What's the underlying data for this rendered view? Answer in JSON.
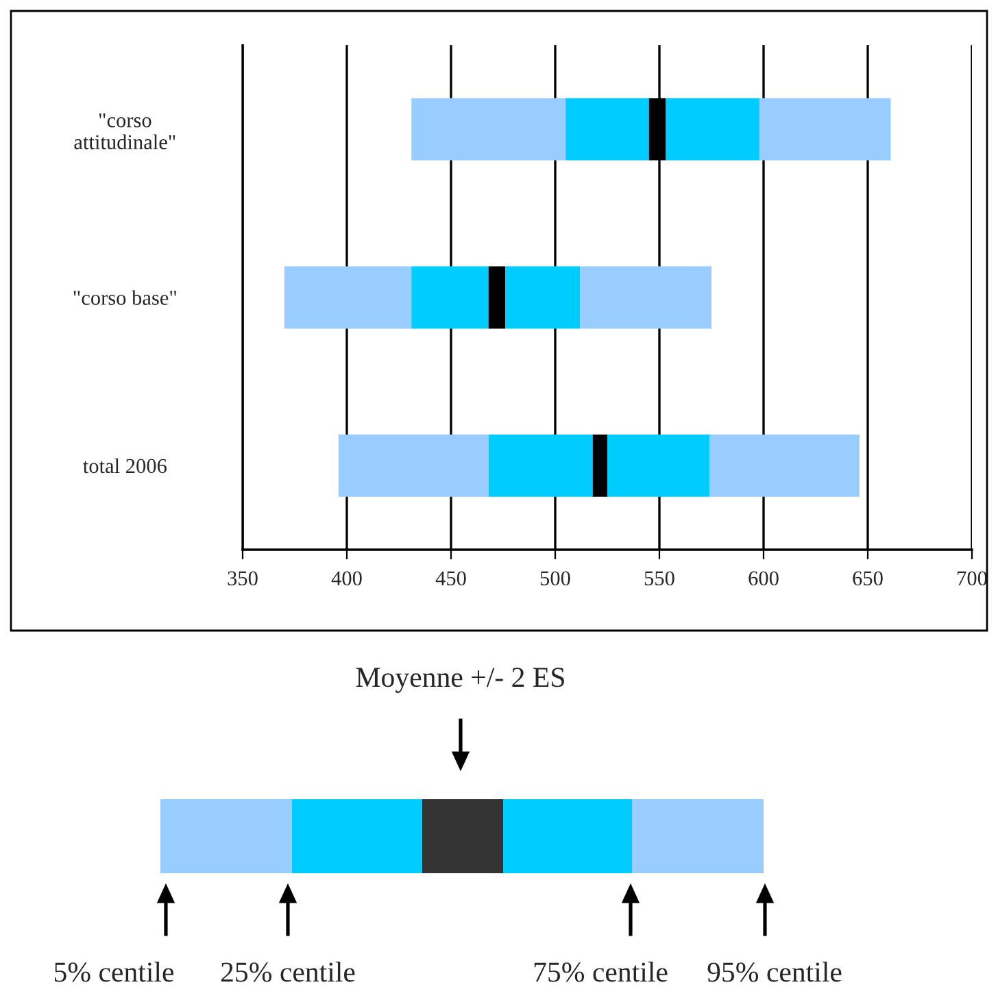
{
  "chart_data": {
    "type": "bar",
    "orientation": "horizontal",
    "categories": [
      "\"corso\nattitudinale\"",
      "\"corso base\"",
      "total 2006"
    ],
    "series": [
      {
        "color": "#99ccff",
        "base": [
          431,
          370,
          396
        ],
        "values": [
          74,
          61,
          72
        ]
      },
      {
        "color": "#00ccff",
        "base": [
          505,
          431,
          468
        ],
        "values": [
          40,
          37,
          50
        ]
      },
      {
        "color": "#000000",
        "base": [
          545,
          468,
          518
        ],
        "values": [
          8,
          8,
          7
        ]
      },
      {
        "color": "#00ccff",
        "base": [
          553,
          476,
          525
        ],
        "values": [
          45,
          36,
          49
        ]
      },
      {
        "color": "#99ccff",
        "base": [
          598,
          512,
          574
        ],
        "values": [
          63,
          63,
          72
        ]
      }
    ],
    "xlim": [
      350,
      700
    ],
    "xticks": [
      350,
      400,
      450,
      500,
      550,
      600,
      650,
      700
    ],
    "grid": "x",
    "legend": false,
    "annotations": [
      "Moyenne +/- 2 ES",
      "5% centile",
      "25% centile",
      "75% centile",
      "95% centile"
    ]
  }
}
